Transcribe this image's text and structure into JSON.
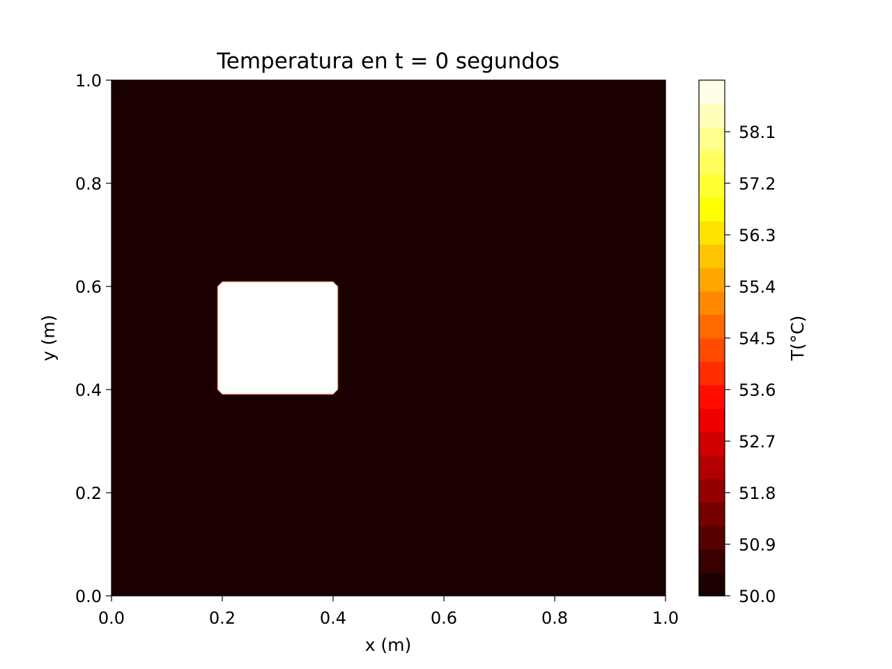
{
  "chart_data": {
    "type": "heatmap",
    "title": "Temperatura en t = 0 segundos",
    "xlabel": "x (m)",
    "ylabel": "y (m)",
    "xlim": [
      0.0,
      1.0
    ],
    "ylim": [
      0.0,
      1.0
    ],
    "x_ticks": [
      "0.0",
      "0.2",
      "0.4",
      "0.6",
      "0.8",
      "1.0"
    ],
    "y_ticks": [
      "0.0",
      "0.2",
      "0.4",
      "0.6",
      "0.8",
      "1.0"
    ],
    "background_value": 50.0,
    "hot_region": {
      "x": [
        0.2,
        0.4
      ],
      "y": [
        0.4,
        0.6
      ],
      "value": 59.0
    },
    "colorbar": {
      "label": "T(°C)",
      "range": [
        50.0,
        59.0
      ],
      "ticks": [
        50.0,
        50.9,
        51.8,
        52.7,
        53.6,
        54.5,
        55.4,
        56.3,
        57.2,
        58.1
      ],
      "tick_labels": [
        "50.0",
        "50.9",
        "51.8",
        "52.7",
        "53.6",
        "54.5",
        "55.4",
        "56.3",
        "57.2",
        "58.1"
      ],
      "levels": 22,
      "colormap": "hot"
    },
    "grid": false
  }
}
